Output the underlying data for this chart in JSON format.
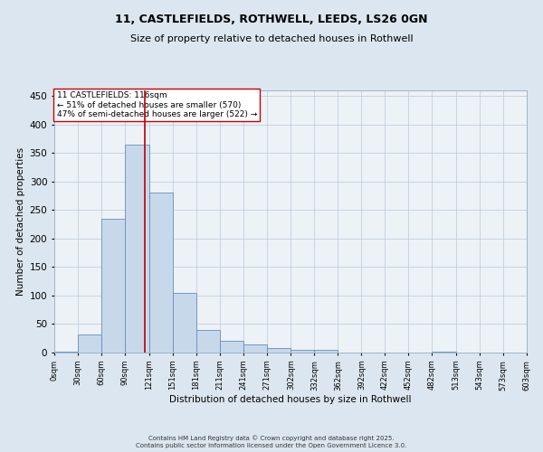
{
  "title_line1": "11, CASTLEFIELDS, ROTHWELL, LEEDS, LS26 0GN",
  "title_line2": "Size of property relative to detached houses in Rothwell",
  "xlabel": "Distribution of detached houses by size in Rothwell",
  "ylabel": "Number of detached properties",
  "annotation_title": "11 CASTLEFIELDS: 116sqm",
  "annotation_line2": "← 51% of detached houses are smaller (570)",
  "annotation_line3": "47% of semi-detached houses are larger (522) →",
  "bar_edges": [
    0,
    30,
    60,
    90,
    121,
    151,
    181,
    211,
    241,
    271,
    302,
    332,
    362,
    392,
    422,
    452,
    482,
    513,
    543,
    573,
    603
  ],
  "bar_heights": [
    2,
    31,
    235,
    365,
    280,
    105,
    40,
    20,
    15,
    8,
    4,
    4,
    0,
    0,
    0,
    0,
    2,
    0,
    0,
    0
  ],
  "bar_color": "#c8d8eb",
  "bar_edge_color": "#6090bb",
  "vline_color": "#bb0000",
  "vline_x": 116,
  "ylim": [
    0,
    460
  ],
  "yticks": [
    0,
    50,
    100,
    150,
    200,
    250,
    300,
    350,
    400,
    450
  ],
  "tick_labels": [
    "0sqm",
    "30sqm",
    "60sqm",
    "90sqm",
    "121sqm",
    "151sqm",
    "181sqm",
    "211sqm",
    "241sqm",
    "271sqm",
    "302sqm",
    "332sqm",
    "362sqm",
    "392sqm",
    "422sqm",
    "452sqm",
    "482sqm",
    "513sqm",
    "543sqm",
    "573sqm",
    "603sqm"
  ],
  "bg_color": "#dce6f0",
  "plot_bg_color": "#edf2f7",
  "footer_line1": "Contains HM Land Registry data © Crown copyright and database right 2025.",
  "footer_line2": "Contains public sector information licensed under the Open Government Licence 3.0.",
  "annotation_box_color": "#ffffff",
  "annotation_box_edge": "#cc0000",
  "grid_color": "#b8c8d8",
  "title_fontsize": 9,
  "subtitle_fontsize": 8,
  "ylabel_fontsize": 7.5,
  "xlabel_fontsize": 7.5,
  "ytick_fontsize": 7.5,
  "xtick_fontsize": 6,
  "annotation_fontsize": 6.5,
  "footer_fontsize": 5
}
